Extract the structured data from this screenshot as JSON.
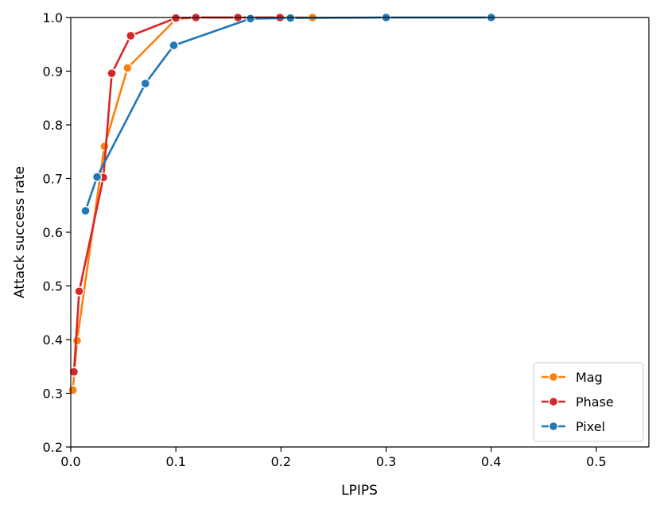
{
  "chart_data": {
    "type": "line",
    "title": "",
    "xlabel": "LPIPS",
    "ylabel": "Attack success rate",
    "xlim": [
      0.0,
      0.55
    ],
    "ylim": [
      0.2,
      1.0
    ],
    "xticks": [
      "0.0",
      "0.1",
      "0.2",
      "0.3",
      "0.4",
      "0.5"
    ],
    "yticks": [
      "0.2",
      "0.3",
      "0.4",
      "0.5",
      "0.6",
      "0.7",
      "0.8",
      "0.9",
      "1.0"
    ],
    "grid": false,
    "legend_position": "bottom-right",
    "series": [
      {
        "name": "Mag",
        "color": "#ff7f0e",
        "x": [
          0.002,
          0.006,
          0.032,
          0.054,
          0.1,
          0.12,
          0.16,
          0.23
        ],
        "y": [
          0.306,
          0.398,
          0.76,
          0.906,
          0.997,
          1.0,
          1.0,
          1.0
        ]
      },
      {
        "name": "Phase",
        "color": "#d62728",
        "x": [
          0.003,
          0.008,
          0.031,
          0.039,
          0.057,
          0.1,
          0.119,
          0.159,
          0.199
        ],
        "y": [
          0.34,
          0.49,
          0.702,
          0.896,
          0.966,
          0.999,
          1.0,
          1.0,
          1.0
        ]
      },
      {
        "name": "Pixel",
        "color": "#1f77b4",
        "x": [
          0.014,
          0.025,
          0.071,
          0.098,
          0.171,
          0.209,
          0.3,
          0.4
        ],
        "y": [
          0.64,
          0.703,
          0.877,
          0.948,
          0.998,
          0.999,
          1.0,
          1.0
        ]
      }
    ]
  }
}
